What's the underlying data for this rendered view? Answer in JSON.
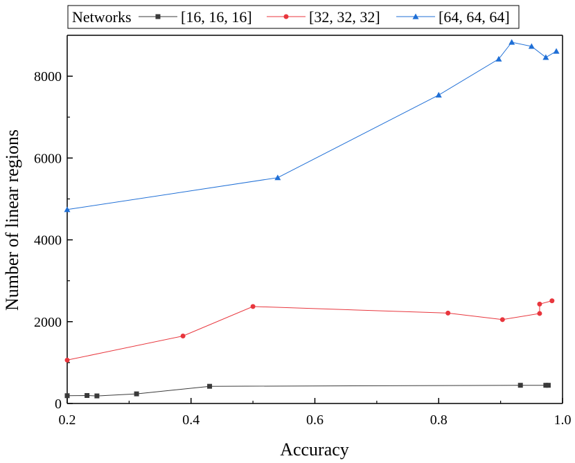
{
  "chart_data": {
    "type": "line",
    "title": "",
    "xlabel": "Accuracy",
    "ylabel": "Number of linear regions",
    "xlim": [
      0.2,
      1.0
    ],
    "ylim": [
      0,
      9000
    ],
    "x_ticks": [
      0.2,
      0.4,
      0.6,
      0.8,
      1.0
    ],
    "x_tick_labels": [
      "0.2",
      "0.4",
      "0.6",
      "0.8",
      "1.0"
    ],
    "y_ticks": [
      0,
      2000,
      4000,
      6000,
      8000
    ],
    "y_tick_labels": [
      "0",
      "2000",
      "4000",
      "6000",
      "8000"
    ],
    "grid": false,
    "legend": {
      "title": "Networks",
      "placement": "top"
    },
    "series": [
      {
        "name": "[16, 16, 16]",
        "color": "#3a3a3a",
        "marker": "square",
        "x": [
          0.2,
          0.232,
          0.248,
          0.312,
          0.43,
          0.932,
          0.973,
          0.977
        ],
        "y": [
          190,
          195,
          185,
          235,
          420,
          445,
          445,
          445
        ]
      },
      {
        "name": "[32, 32, 32]",
        "color": "#e8363d",
        "marker": "circle",
        "x": [
          0.2,
          0.387,
          0.5,
          0.815,
          0.903,
          0.963,
          0.963,
          0.983
        ],
        "y": [
          1060,
          1650,
          2370,
          2210,
          2050,
          2200,
          2430,
          2510
        ]
      },
      {
        "name": "[64, 64, 64]",
        "color": "#1f6fd6",
        "marker": "triangle",
        "x": [
          0.2,
          0.54,
          0.8,
          0.897,
          0.918,
          0.95,
          0.973,
          0.99
        ],
        "y": [
          4740,
          5520,
          7540,
          8420,
          8830,
          8730,
          8460,
          8610
        ]
      }
    ]
  }
}
